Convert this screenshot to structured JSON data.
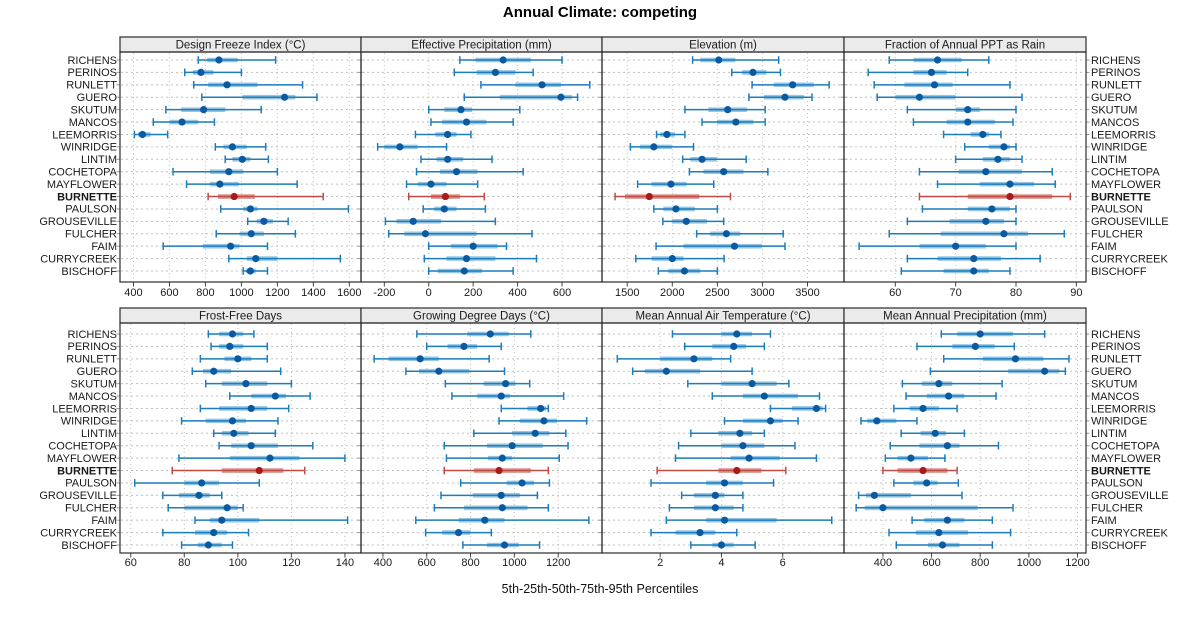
{
  "title": "Annual Climate: competing",
  "xlabel": "5th-25th-50th-75th-95th Percentiles",
  "percentile_labels": [
    "5th",
    "25th",
    "50th",
    "75th",
    "95th"
  ],
  "sites": [
    "RICHENS",
    "PERINOS",
    "RUNLETT",
    "GUERO",
    "SKUTUM",
    "MANCOS",
    "LEEMORRIS",
    "WINRIDGE",
    "LINTIM",
    "COCHETOPA",
    "MAYFLOWER",
    "BURNETTE",
    "PAULSON",
    "GROUSEVILLE",
    "FULCHER",
    "FAIM",
    "CURRYCREEK",
    "BISCHOFF"
  ],
  "highlight_site": "BURNETTE",
  "colors": {
    "site_blue": "#1C7CBC",
    "site_blue_band": "#96C6E2",
    "site_blue_dot": "#0A5AA2",
    "highlight_red": "#C14B44",
    "highlight_red_band": "#D69690",
    "highlight_red_dot": "#AA1A1A",
    "grid": "#BFBFBF",
    "strip_bg": "#EBEBEB",
    "panel_border": "#2B2B2B",
    "tick": "#444444",
    "text": "#1A1A1A"
  },
  "chart_data": [
    {
      "type": "percentile_dotplot",
      "title": "Design Freeze Index (°C)",
      "xlim": [
        325,
        1665
      ],
      "ticks": [
        400,
        600,
        800,
        1000,
        1200,
        1400,
        1600
      ],
      "values": [
        [
          760,
          810,
          875,
          980,
          1190
        ],
        [
          685,
          730,
          775,
          845,
          1000
        ],
        [
          735,
          815,
          920,
          1090,
          1340
        ],
        [
          780,
          1005,
          1240,
          1300,
          1420
        ],
        [
          580,
          665,
          790,
          910,
          1110
        ],
        [
          510,
          600,
          670,
          760,
          850
        ],
        [
          405,
          425,
          450,
          495,
          590
        ],
        [
          855,
          900,
          950,
          1030,
          1135
        ],
        [
          910,
          950,
          1005,
          1050,
          1150
        ],
        [
          620,
          825,
          930,
          1010,
          1200
        ],
        [
          695,
          825,
          880,
          985,
          1310
        ],
        [
          815,
          870,
          960,
          1075,
          1455
        ],
        [
          885,
          1010,
          1050,
          1090,
          1595
        ],
        [
          1035,
          1085,
          1125,
          1175,
          1260
        ],
        [
          860,
          990,
          1055,
          1125,
          1300
        ],
        [
          565,
          785,
          940,
          990,
          1145
        ],
        [
          930,
          1030,
          1080,
          1200,
          1550
        ],
        [
          1010,
          1025,
          1050,
          1080,
          1145
        ]
      ]
    },
    {
      "type": "percentile_dotplot",
      "title": "Effective Precipitation (mm)",
      "xlim": [
        -305,
        780
      ],
      "ticks": [
        -200,
        0,
        200,
        400,
        600
      ],
      "values": [
        [
          140,
          210,
          335,
          460,
          600
        ],
        [
          115,
          215,
          300,
          390,
          470
        ],
        [
          235,
          390,
          510,
          595,
          725
        ],
        [
          160,
          320,
          595,
          645,
          670
        ],
        [
          0,
          70,
          145,
          195,
          410
        ],
        [
          10,
          60,
          170,
          260,
          380
        ],
        [
          -60,
          30,
          85,
          125,
          190
        ],
        [
          -230,
          -200,
          -130,
          -50,
          80
        ],
        [
          -35,
          35,
          85,
          155,
          285
        ],
        [
          -55,
          50,
          125,
          220,
          425
        ],
        [
          -100,
          -50,
          10,
          80,
          220
        ],
        [
          -90,
          10,
          75,
          140,
          250
        ],
        [
          -25,
          25,
          70,
          125,
          255
        ],
        [
          -195,
          -145,
          -70,
          55,
          300
        ],
        [
          -180,
          -110,
          -15,
          215,
          465
        ],
        [
          0,
          100,
          200,
          310,
          350
        ],
        [
          -20,
          80,
          170,
          300,
          485
        ],
        [
          0,
          40,
          160,
          240,
          380
        ]
      ]
    },
    {
      "type": "percentile_dotplot",
      "title": "Elevation (m)",
      "xlim": [
        1220,
        3905
      ],
      "ticks": [
        1500,
        2000,
        2500,
        3000,
        3500
      ],
      "values": [
        [
          2225,
          2310,
          2515,
          2700,
          3180
        ],
        [
          2660,
          2775,
          2895,
          3045,
          3200
        ],
        [
          2885,
          3125,
          3335,
          3570,
          3740
        ],
        [
          2850,
          3015,
          3250,
          3460,
          3550
        ],
        [
          2140,
          2400,
          2615,
          2830,
          3030
        ],
        [
          2330,
          2495,
          2705,
          2900,
          3030
        ],
        [
          1825,
          1865,
          1940,
          2030,
          2140
        ],
        [
          1535,
          1640,
          1795,
          1995,
          2235
        ],
        [
          2115,
          2200,
          2330,
          2495,
          2820
        ],
        [
          2190,
          2345,
          2570,
          2790,
          3060
        ],
        [
          1615,
          1770,
          1985,
          2160,
          2460
        ],
        [
          1365,
          1475,
          1745,
          2300,
          2645
        ],
        [
          1795,
          1900,
          2040,
          2250,
          2500
        ],
        [
          1895,
          1995,
          2155,
          2385,
          2570
        ],
        [
          2270,
          2420,
          2600,
          2755,
          3230
        ],
        [
          1820,
          2125,
          2690,
          2995,
          3250
        ],
        [
          1595,
          1770,
          2000,
          2125,
          2575
        ],
        [
          1845,
          1955,
          2135,
          2310,
          2500
        ]
      ]
    },
    {
      "type": "percentile_dotplot",
      "title": "Fraction of Annual PPT as Rain",
      "xlim": [
        51.5,
        91.6
      ],
      "ticks": [
        60,
        70,
        80,
        90
      ],
      "values": [
        [
          59,
          63,
          67,
          71,
          75.5
        ],
        [
          55.5,
          63,
          66,
          68.5,
          72
        ],
        [
          56.5,
          61.5,
          66.5,
          69.5,
          79
        ],
        [
          57,
          60,
          64,
          70,
          81
        ],
        [
          62,
          70,
          72,
          74,
          80
        ],
        [
          63,
          68.5,
          72,
          76.5,
          79.5
        ],
        [
          68,
          72.5,
          74.5,
          75.5,
          77.5
        ],
        [
          71.5,
          75.5,
          78,
          79,
          80
        ],
        [
          70,
          74.5,
          77,
          79,
          81
        ],
        [
          64,
          70.5,
          75,
          81,
          86
        ],
        [
          67,
          74,
          79,
          83,
          86.5
        ],
        [
          64,
          72,
          79,
          86,
          89
        ],
        [
          64.5,
          72,
          76,
          79,
          80
        ],
        [
          62,
          69,
          75,
          78,
          80
        ],
        [
          59,
          67.5,
          78,
          82,
          88
        ],
        [
          54,
          64,
          70,
          75,
          80
        ],
        [
          62,
          67,
          73,
          77.5,
          84
        ],
        [
          61,
          68,
          73,
          75.5,
          79
        ]
      ]
    },
    {
      "type": "percentile_dotplot",
      "title": "Frost-Free Days",
      "xlim": [
        56,
        146
      ],
      "ticks": [
        60,
        80,
        100,
        120,
        140
      ],
      "values": [
        [
          89,
          93,
          98,
          102,
          106
        ],
        [
          90,
          93,
          97,
          102,
          111
        ],
        [
          86,
          95,
          100,
          105,
          111
        ],
        [
          83,
          87,
          91,
          97.5,
          116
        ],
        [
          88,
          94,
          103,
          111,
          120
        ],
        [
          97,
          105,
          114,
          118,
          127
        ],
        [
          86,
          93,
          105,
          111,
          119
        ],
        [
          79,
          88,
          98,
          103,
          115
        ],
        [
          91,
          94,
          98.5,
          104,
          114
        ],
        [
          93,
          97.5,
          105,
          115,
          128
        ],
        [
          78,
          97,
          112,
          123,
          140
        ],
        [
          75.5,
          94,
          108,
          117,
          125
        ],
        [
          61.5,
          80,
          86.5,
          93,
          108
        ],
        [
          72,
          78,
          85.5,
          89.5,
          94
        ],
        [
          74,
          80,
          96,
          100,
          102
        ],
        [
          84,
          89.5,
          94,
          108,
          141
        ],
        [
          72,
          84,
          91,
          96,
          104
        ],
        [
          79,
          85,
          89,
          94,
          98
        ]
      ]
    },
    {
      "type": "percentile_dotplot",
      "title": "Growing Degree Days (°C)",
      "xlim": [
        300,
        1400
      ],
      "ticks": [
        400,
        600,
        800,
        1000,
        1200
      ],
      "values": [
        [
          555,
          785,
          890,
          975,
          1075
        ],
        [
          600,
          695,
          770,
          830,
          940
        ],
        [
          360,
          425,
          570,
          655,
          885
        ],
        [
          505,
          565,
          655,
          795,
          955
        ],
        [
          685,
          860,
          960,
          1005,
          1070
        ],
        [
          715,
          830,
          940,
          980,
          1225
        ],
        [
          940,
          1060,
          1120,
          1145,
          1155
        ],
        [
          930,
          1025,
          1135,
          1195,
          1330
        ],
        [
          815,
          990,
          1095,
          1160,
          1235
        ],
        [
          680,
          875,
          990,
          1130,
          1245
        ],
        [
          690,
          880,
          945,
          990,
          1205
        ],
        [
          680,
          815,
          930,
          1075,
          1155
        ],
        [
          755,
          965,
          1035,
          1090,
          1160
        ],
        [
          665,
          810,
          940,
          1025,
          1105
        ],
        [
          635,
          770,
          945,
          1060,
          1155
        ],
        [
          550,
          745,
          865,
          955,
          1340
        ],
        [
          595,
          670,
          745,
          800,
          895
        ],
        [
          765,
          875,
          955,
          1020,
          1115
        ]
      ]
    },
    {
      "type": "percentile_dotplot",
      "title": "Mean Annual Air Temperature (°C)",
      "xlim": [
        0.1,
        8.0
      ],
      "ticks": [
        2,
        4,
        6
      ],
      "values": [
        [
          2.4,
          4.0,
          4.5,
          5.0,
          5.6
        ],
        [
          2.8,
          3.7,
          4.4,
          4.8,
          5.4
        ],
        [
          0.6,
          2.0,
          3.1,
          3.7,
          4.3
        ],
        [
          1.1,
          1.5,
          2.2,
          3.3,
          5.0
        ],
        [
          2.9,
          4.0,
          5.0,
          5.8,
          6.2
        ],
        [
          3.7,
          4.7,
          5.4,
          6.5,
          7.2
        ],
        [
          5.6,
          6.3,
          7.1,
          7.3,
          7.4
        ],
        [
          4.1,
          4.7,
          5.6,
          6.0,
          6.5
        ],
        [
          3.0,
          3.9,
          4.6,
          5.0,
          5.4
        ],
        [
          2.6,
          4.0,
          4.7,
          5.4,
          6.4
        ],
        [
          2.5,
          4.3,
          4.9,
          5.9,
          7.1
        ],
        [
          1.9,
          3.9,
          4.5,
          5.3,
          6.1
        ],
        [
          1.7,
          3.5,
          4.1,
          4.7,
          5.7
        ],
        [
          2.7,
          3.1,
          3.8,
          4.1,
          4.7
        ],
        [
          2.3,
          3.1,
          3.8,
          4.4,
          4.7
        ],
        [
          2.2,
          3.5,
          4.1,
          5.8,
          7.6
        ],
        [
          1.7,
          2.5,
          3.3,
          3.8,
          4.5
        ],
        [
          3.0,
          3.7,
          4.0,
          4.4,
          5.1
        ]
      ]
    },
    {
      "type": "percentile_dotplot",
      "title": "Mean Annual Precipitation (mm)",
      "xlim": [
        240,
        1235
      ],
      "ticks": [
        400,
        600,
        800,
        1000,
        1200
      ],
      "values": [
        [
          640,
          705,
          800,
          935,
          1065
        ],
        [
          540,
          685,
          780,
          860,
          940
        ],
        [
          650,
          810,
          945,
          1060,
          1165
        ],
        [
          595,
          915,
          1065,
          1125,
          1150
        ],
        [
          480,
          560,
          630,
          685,
          890
        ],
        [
          495,
          580,
          670,
          735,
          865
        ],
        [
          445,
          510,
          565,
          630,
          705
        ],
        [
          310,
          335,
          375,
          455,
          540
        ],
        [
          475,
          555,
          615,
          660,
          735
        ],
        [
          430,
          550,
          665,
          715,
          875
        ],
        [
          410,
          460,
          515,
          585,
          655
        ],
        [
          400,
          460,
          565,
          665,
          705
        ],
        [
          445,
          525,
          580,
          625,
          710
        ],
        [
          300,
          330,
          365,
          515,
          725
        ],
        [
          290,
          325,
          400,
          790,
          935
        ],
        [
          520,
          570,
          665,
          735,
          850
        ],
        [
          425,
          535,
          630,
          750,
          925
        ],
        [
          455,
          585,
          645,
          715,
          850
        ]
      ]
    }
  ]
}
